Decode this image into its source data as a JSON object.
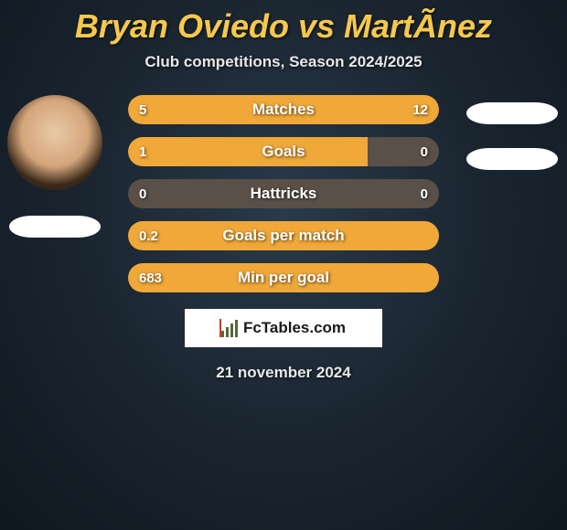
{
  "background": {
    "base_color": "#1a2a3a",
    "gradient": "radial-gradient(ellipse at 50% 40%, #2a3a4a 0%, #1a2530 50%, #0f1820 100%)"
  },
  "title": {
    "text": "Bryan Oviedo vs MartÃ­nez",
    "color": "#f7c84d",
    "fontsize": 36
  },
  "subtitle": {
    "text": "Club competitions, Season 2024/2025",
    "color": "#e8e8e8",
    "fontsize": 17
  },
  "player_left": {
    "has_photo": true,
    "flag_color": "#ffffff"
  },
  "player_right": {
    "has_photo": false,
    "flag1_color": "#ffffff",
    "flag2_color": "#ffffff"
  },
  "bars": {
    "track_color": "#5a5048",
    "left_fill_color": "#f0a838",
    "right_fill_color": "#f0a838",
    "label_color": "#ffffff",
    "value_color": "#ffffff",
    "fontsize_label": 17,
    "fontsize_value": 15,
    "items": [
      {
        "label": "Matches",
        "left_val": "5",
        "right_val": "12",
        "left_pct": 29.4,
        "right_pct": 70.6
      },
      {
        "label": "Goals",
        "left_val": "1",
        "right_val": "0",
        "left_pct": 77.0,
        "right_pct": 0.0
      },
      {
        "label": "Hattricks",
        "left_val": "0",
        "right_val": "0",
        "left_pct": 0.0,
        "right_pct": 0.0
      },
      {
        "label": "Goals per match",
        "left_val": "0.2",
        "right_val": "",
        "left_pct": 100.0,
        "right_pct": 0.0
      },
      {
        "label": "Min per goal",
        "left_val": "683",
        "right_val": "",
        "left_pct": 100.0,
        "right_pct": 0.0
      }
    ]
  },
  "logo": {
    "bg_color": "#ffffff",
    "text": "FcTables.com",
    "text_color": "#1a1a1a",
    "bar_color": "#546a3a",
    "arrow_color": "#c04030"
  },
  "date": {
    "text": "21 november 2024",
    "color": "#e8e8e8",
    "fontsize": 17
  }
}
